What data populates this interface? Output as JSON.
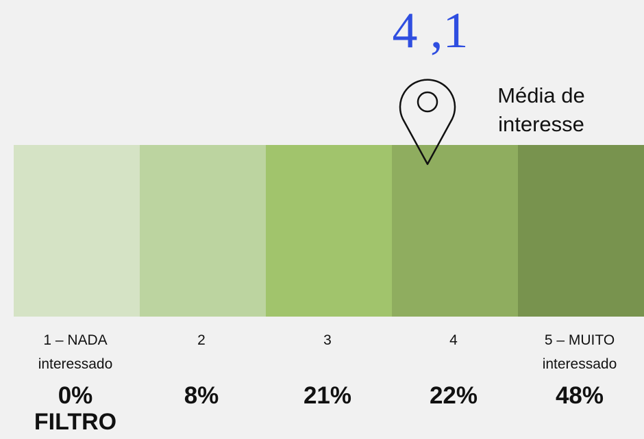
{
  "mean": {
    "value": "4 ,1",
    "label": [
      "Média de",
      "interesse"
    ]
  },
  "scale": [
    {
      "label": [
        "1 – NADA",
        "interessado"
      ],
      "percent": "0%",
      "color": "#d5e3c5"
    },
    {
      "label": [
        "2"
      ],
      "percent": "8%",
      "color": "#bcd4a0"
    },
    {
      "label": [
        "3"
      ],
      "percent": "21%",
      "color": "#a1c46c"
    },
    {
      "label": [
        "4"
      ],
      "percent": "22%",
      "color": "#8fad5f"
    },
    {
      "label": [
        "5 – MUITO",
        "interessado"
      ],
      "percent": "48%",
      "color": "#78934e"
    }
  ],
  "filter": "FILTRO"
}
